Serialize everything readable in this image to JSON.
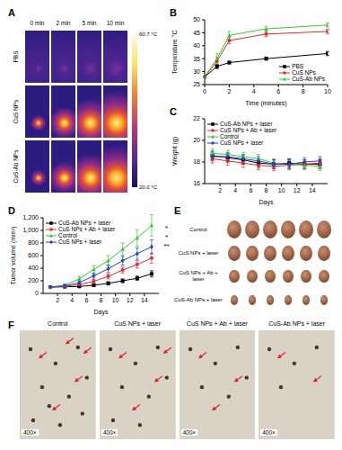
{
  "chart_data": [
    {
      "title": "B",
      "type": "line",
      "x_label": "Time (minutes)",
      "y_label": "Temperature °C",
      "x": [
        0,
        1,
        2,
        5,
        10
      ],
      "xlim": [
        0,
        10
      ],
      "xticks": [
        0,
        2,
        4,
        6,
        8,
        10
      ],
      "ylim": [
        25,
        50
      ],
      "yticks": [
        25,
        30,
        35,
        40,
        45,
        50
      ],
      "legend": "lower right",
      "series": [
        {
          "name": "PBS",
          "color": "#000000",
          "marker": "square",
          "values": [
            28,
            32,
            33.5,
            35,
            37
          ],
          "errors": [
            0.3,
            0.8,
            0.5,
            0.6,
            0.8
          ]
        },
        {
          "name": "CuS NPs",
          "color": "#e8262a",
          "marker": "circle",
          "values": [
            28,
            34,
            42,
            44.5,
            45.5
          ],
          "errors": [
            0.3,
            1.5,
            1.2,
            1.0,
            0.8
          ]
        },
        {
          "name": "CuS-Ab NPs",
          "color": "#33cc33",
          "marker": "triangle",
          "values": [
            28,
            35,
            44,
            46.5,
            48
          ],
          "errors": [
            0.3,
            2.0,
            1.5,
            1.0,
            0.8
          ]
        }
      ]
    },
    {
      "title": "C",
      "type": "line",
      "x_label": "Days",
      "y_label": "Weight (g)",
      "x": [
        1,
        3,
        5,
        7,
        9,
        11,
        13,
        15
      ],
      "xlim": [
        0,
        16
      ],
      "xticks": [
        2,
        4,
        6,
        8,
        10,
        12,
        14
      ],
      "ylim": [
        16,
        22
      ],
      "yticks": [
        16,
        18,
        20,
        22
      ],
      "legend": "upper left",
      "series": [
        {
          "name": "CuS-Ab NPs + laser",
          "color": "#000000",
          "marker": "square",
          "values": [
            18.6,
            18.4,
            18.2,
            17.9,
            17.8,
            17.9,
            17.8,
            17.8
          ],
          "errors": [
            0.4,
            0.4,
            0.4,
            0.4,
            0.4,
            0.4,
            0.4,
            0.4
          ]
        },
        {
          "name": "CuS NPs + Ab + laser",
          "color": "#e8262a",
          "marker": "circle",
          "values": [
            18.3,
            18.1,
            17.9,
            17.7,
            17.6,
            17.7,
            17.8,
            17.9
          ],
          "errors": [
            0.4,
            0.4,
            0.4,
            0.4,
            0.4,
            0.4,
            0.4,
            0.4
          ]
        },
        {
          "name": "Control",
          "color": "#33cc33",
          "marker": "triangle",
          "values": [
            18.8,
            18.7,
            18.5,
            18.3,
            17.9,
            17.8,
            17.7,
            17.6
          ],
          "errors": [
            0.4,
            0.4,
            0.4,
            0.4,
            0.4,
            0.4,
            0.4,
            0.4
          ]
        },
        {
          "name": "CuS NPs + laser",
          "color": "#1f3fd6",
          "marker": "diamond",
          "values": [
            18.5,
            18.5,
            18.3,
            18.1,
            17.8,
            17.8,
            18.0,
            18.1
          ],
          "errors": [
            0.4,
            0.4,
            0.4,
            0.4,
            0.4,
            0.4,
            0.4,
            0.4
          ]
        }
      ]
    },
    {
      "title": "D",
      "type": "line",
      "x_label": "Days",
      "y_label": "Tumor volume (mm³)",
      "x": [
        1,
        3,
        5,
        7,
        9,
        11,
        13,
        15
      ],
      "xlim": [
        0,
        16
      ],
      "xticks": [
        2,
        4,
        6,
        8,
        10,
        12,
        14
      ],
      "ylim": [
        0,
        1200
      ],
      "yticks": [
        0,
        200,
        400,
        600,
        800,
        {
          "value": 1000,
          "label": "1,000"
        },
        {
          "value": 1200,
          "label": "1,200"
        }
      ],
      "legend": "upper left",
      "annotations": [
        "*",
        "*",
        "**"
      ],
      "series": [
        {
          "name": "CuS-Ab NPs + laser",
          "color": "#000000",
          "marker": "square",
          "values": [
            100,
            105,
            110,
            130,
            160,
            200,
            240,
            310
          ],
          "errors": [
            10,
            10,
            15,
            20,
            25,
            30,
            35,
            50
          ]
        },
        {
          "name": "CuS NPs + Ab + laser",
          "color": "#e8262a",
          "marker": "circle",
          "values": [
            100,
            110,
            140,
            190,
            270,
            370,
            460,
            560
          ],
          "errors": [
            10,
            15,
            20,
            30,
            40,
            50,
            60,
            80
          ]
        },
        {
          "name": "Control",
          "color": "#33cc33",
          "marker": "triangle",
          "values": [
            100,
            130,
            230,
            380,
            520,
            700,
            880,
            1080
          ],
          "errors": [
            10,
            20,
            40,
            60,
            80,
            100,
            130,
            170
          ]
        },
        {
          "name": "CuS NPs + laser",
          "color": "#1f3fd6",
          "marker": "diamond",
          "values": [
            100,
            120,
            170,
            280,
            390,
            520,
            630,
            740
          ],
          "errors": [
            10,
            15,
            30,
            40,
            60,
            70,
            90,
            110
          ]
        }
      ]
    }
  ],
  "figure_panels": {
    "A": {
      "title": "A",
      "columns": [
        "0 min",
        "2 min",
        "5 min",
        "10 min"
      ],
      "rows": [
        "PBS",
        "CuS NPs",
        "CuS-Ab NPs"
      ],
      "colorbar_range": [
        20.0,
        60.7
      ],
      "colorbar_ticks": [
        {
          "value": 60.7,
          "label": "60.7 °C"
        },
        {
          "value": 20.0,
          "label": "20.0 °C"
        }
      ]
    },
    "E": {
      "title": "E",
      "rows": [
        "Control",
        "CuS NPs + laser",
        "CuS NPs + Ab + laser",
        "CuS-Ab NPs + laser"
      ],
      "tumor_counts": [
        6,
        6,
        6,
        6
      ]
    },
    "F": {
      "title": "F",
      "panels": [
        "Control",
        "CuS NPs + laser",
        "CuS NPs + Ab + laser",
        "CuS-Ab NPs + laser"
      ],
      "magnification": "400×"
    }
  }
}
